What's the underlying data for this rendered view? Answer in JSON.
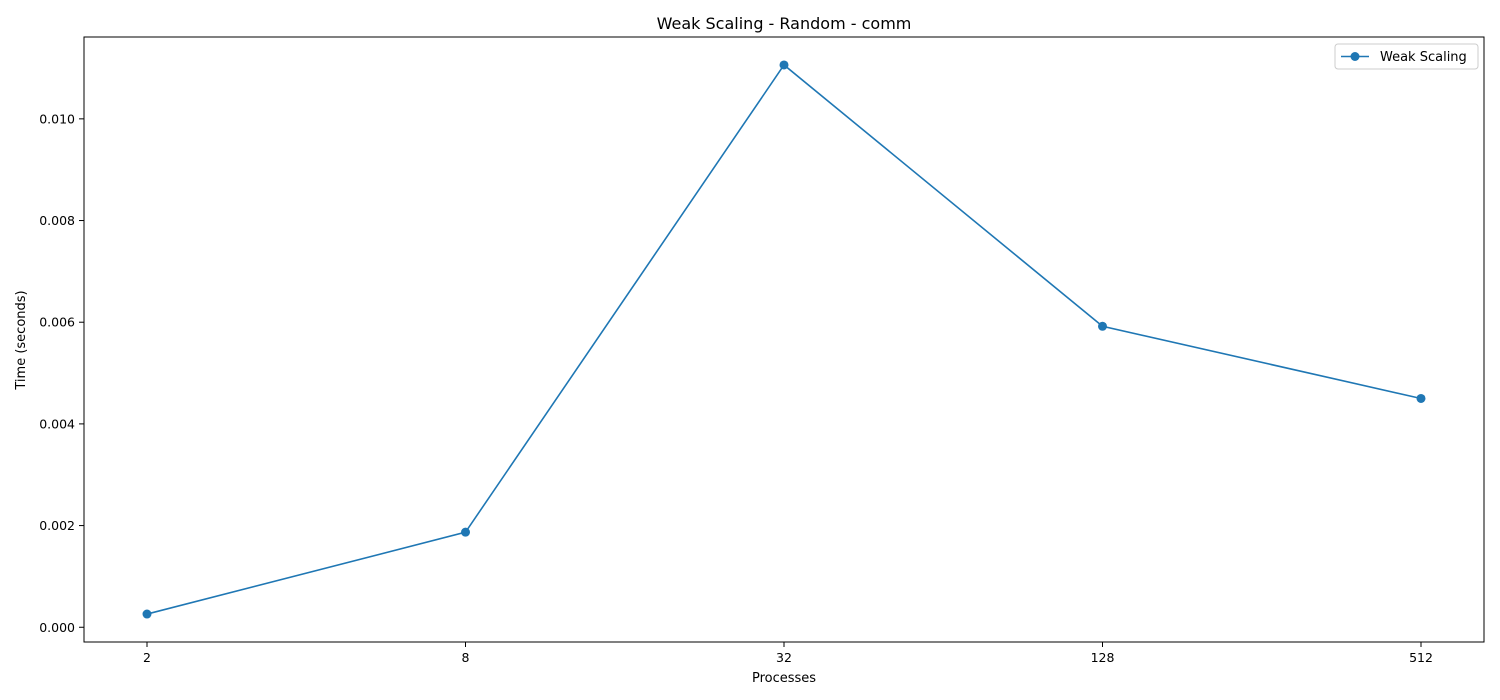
{
  "chart_data": {
    "type": "line",
    "title": "Weak Scaling - Random - comm",
    "xlabel": "Processes",
    "ylabel": "Time (seconds)",
    "x_scale": "log2",
    "categories": [
      "2",
      "8",
      "32",
      "128",
      "512"
    ],
    "x": [
      2,
      8,
      32,
      128,
      512
    ],
    "series": [
      {
        "name": "Weak Scaling",
        "color": "#1f77b4",
        "marker": "circle",
        "values": [
          0.00026,
          0.00187,
          0.01106,
          0.00592,
          0.0045
        ]
      }
    ],
    "yticks": [
      "0.000",
      "0.002",
      "0.004",
      "0.006",
      "0.008",
      "0.010"
    ],
    "ylim": [
      -0.00029,
      0.01161
    ],
    "grid": false,
    "legend_position": "top-right"
  }
}
